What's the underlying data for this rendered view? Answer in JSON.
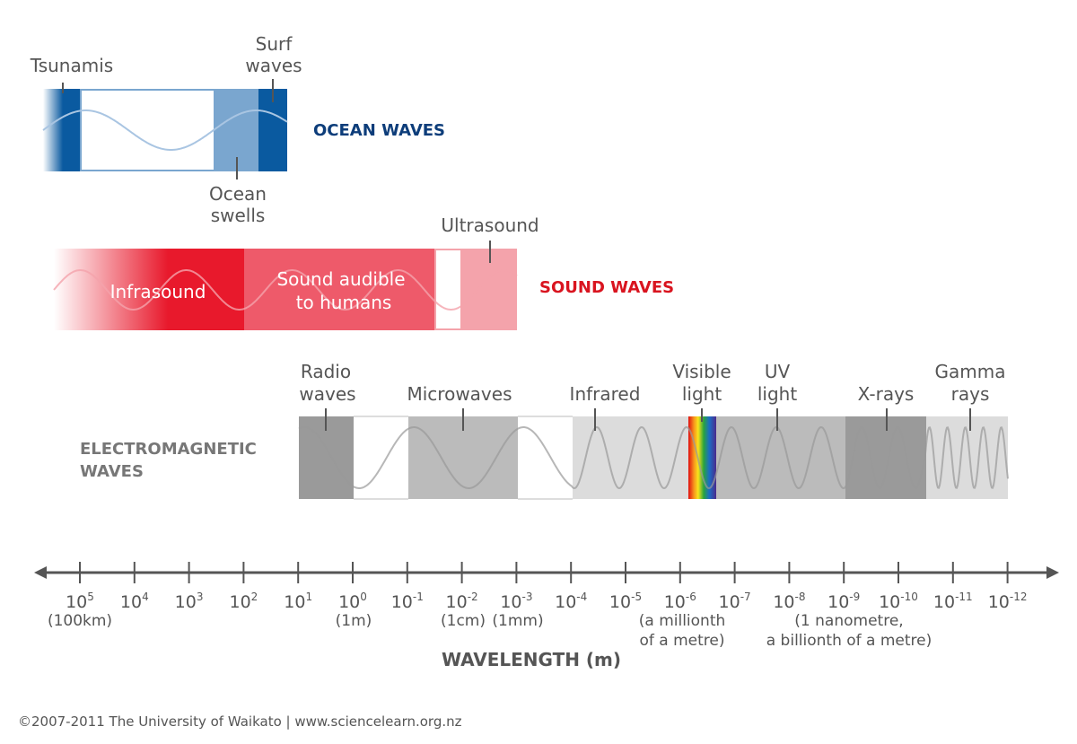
{
  "ocean": {
    "title": "OCEAN WAVES",
    "title_color": "#0d3d7a",
    "labels": {
      "tsunamis": "Tsunamis",
      "surf_1": "Surf",
      "surf_2": "waves",
      "swells_1": "Ocean",
      "swells_2": "swells"
    }
  },
  "sound": {
    "title": "SOUND WAVES",
    "title_color": "#d9141f",
    "labels": {
      "infrasound": "Infrasound",
      "audible_1": "Sound audible",
      "audible_2": "to humans",
      "ultrasound": "Ultrasound"
    }
  },
  "em": {
    "title_1": "ELECTROMAGNETIC",
    "title_2": "WAVES",
    "labels": {
      "radio_1": "Radio",
      "radio_2": "waves",
      "microwaves": "Microwaves",
      "infrared": "Infrared",
      "visible_1": "Visible",
      "visible_2": "light",
      "uv_1": "UV",
      "uv_2": "light",
      "xrays": "X-rays",
      "gamma_1": "Gamma",
      "gamma_2": "rays"
    }
  },
  "axis": {
    "title": "WAVELENGTH (m)",
    "exponents": [
      "5",
      "4",
      "3",
      "2",
      "1",
      "0",
      "-1",
      "-2",
      "-3",
      "-4",
      "-5",
      "-6",
      "-7",
      "-8",
      "-9",
      "-10",
      "-11",
      "-12"
    ],
    "base": "10",
    "notes": {
      "n100km": "(100km)",
      "n1m": "(1m)",
      "n1cm": "(1cm)",
      "n1mm": "(1mm)",
      "million_1": "(a millionth",
      "million_2": "of a metre)",
      "nano_1": "(1 nanometre,",
      "nano_2": "a billionth of a metre)"
    }
  },
  "footer": "©2007-2011 The University of Waikato | www.sciencelearn.org.nz"
}
